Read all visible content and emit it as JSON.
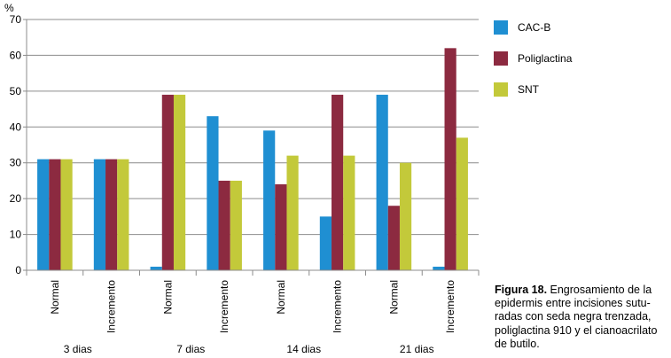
{
  "chart_data": {
    "type": "bar",
    "ylabel": "%",
    "ylim": [
      0,
      70
    ],
    "yticks": [
      0,
      10,
      20,
      30,
      40,
      50,
      60,
      70
    ],
    "grid": true,
    "legend_position": "right",
    "categories": [
      "Normal",
      "Incremento",
      "Normal",
      "Incremento",
      "Normal",
      "Incremento",
      "Normal",
      "Incremento"
    ],
    "groups": [
      "3 dias",
      "7 dias",
      "14 dias",
      "21 dias"
    ],
    "series": [
      {
        "name": "CAC-B",
        "color": "#1f8fd2",
        "values": [
          31,
          31,
          1,
          43,
          39,
          15,
          49,
          1
        ]
      },
      {
        "name": "Poliglactina",
        "color": "#8c2a40",
        "values": [
          31,
          31,
          49,
          25,
          24,
          49,
          18,
          62
        ]
      },
      {
        "name": "SNT",
        "color": "#c3c93a",
        "values": [
          31,
          31,
          49,
          25,
          32,
          32,
          30,
          37
        ]
      }
    ]
  },
  "caption": {
    "label": "Figura 18.",
    "text": " Engrosamiento de la epidermis entre incisiones sutu-radas con seda negra trenzada, poliglactina 910 y el cianoacrilato de butilo."
  }
}
